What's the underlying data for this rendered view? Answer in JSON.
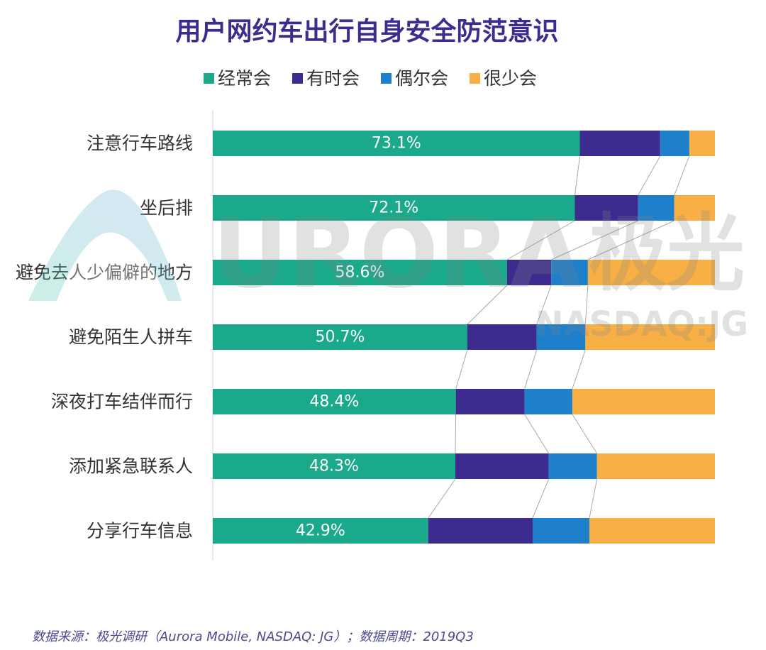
{
  "chart_data": {
    "type": "bar",
    "orientation": "horizontal",
    "stacked": true,
    "title": "用户网约车出行自身安全防范意识",
    "xlabel": "",
    "ylabel": "",
    "xlim": [
      0,
      100
    ],
    "grid": false,
    "legend": "top",
    "categories": [
      "注意行车路线",
      "坐后排",
      "避免去人少偏僻的地方",
      "避免陌生人拼车",
      "深夜打车结伴而行",
      "添加紧急联系人",
      "分享行车信息"
    ],
    "series": [
      {
        "name": "经常会",
        "color": "#1aa98b",
        "values": [
          73.1,
          72.1,
          58.6,
          50.7,
          48.4,
          48.3,
          42.9
        ],
        "data_labels": [
          "73.1%",
          "72.1%",
          "58.6%",
          "50.7%",
          "48.4%",
          "48.3%",
          "42.9%"
        ]
      },
      {
        "name": "有时会",
        "color": "#3e2b8f",
        "values": [
          16.0,
          12.6,
          8.8,
          13.8,
          13.7,
          18.6,
          20.8
        ]
      },
      {
        "name": "偶尔会",
        "color": "#1e7fcb",
        "values": [
          5.8,
          7.2,
          7.3,
          9.7,
          9.5,
          9.6,
          11.3
        ]
      },
      {
        "name": "很少会",
        "color": "#f8b046",
        "values": [
          5.1,
          8.1,
          25.3,
          25.8,
          28.4,
          23.5,
          25.0
        ]
      }
    ]
  },
  "footer": {
    "source": "数据来源：极光调研（Aurora Mobile, NASDAQ: JG）；数据周期：2019Q3"
  },
  "watermark": {
    "brand": "URORA",
    "brand_cn": "极光",
    "ticker": "NASDAQ:JG"
  }
}
